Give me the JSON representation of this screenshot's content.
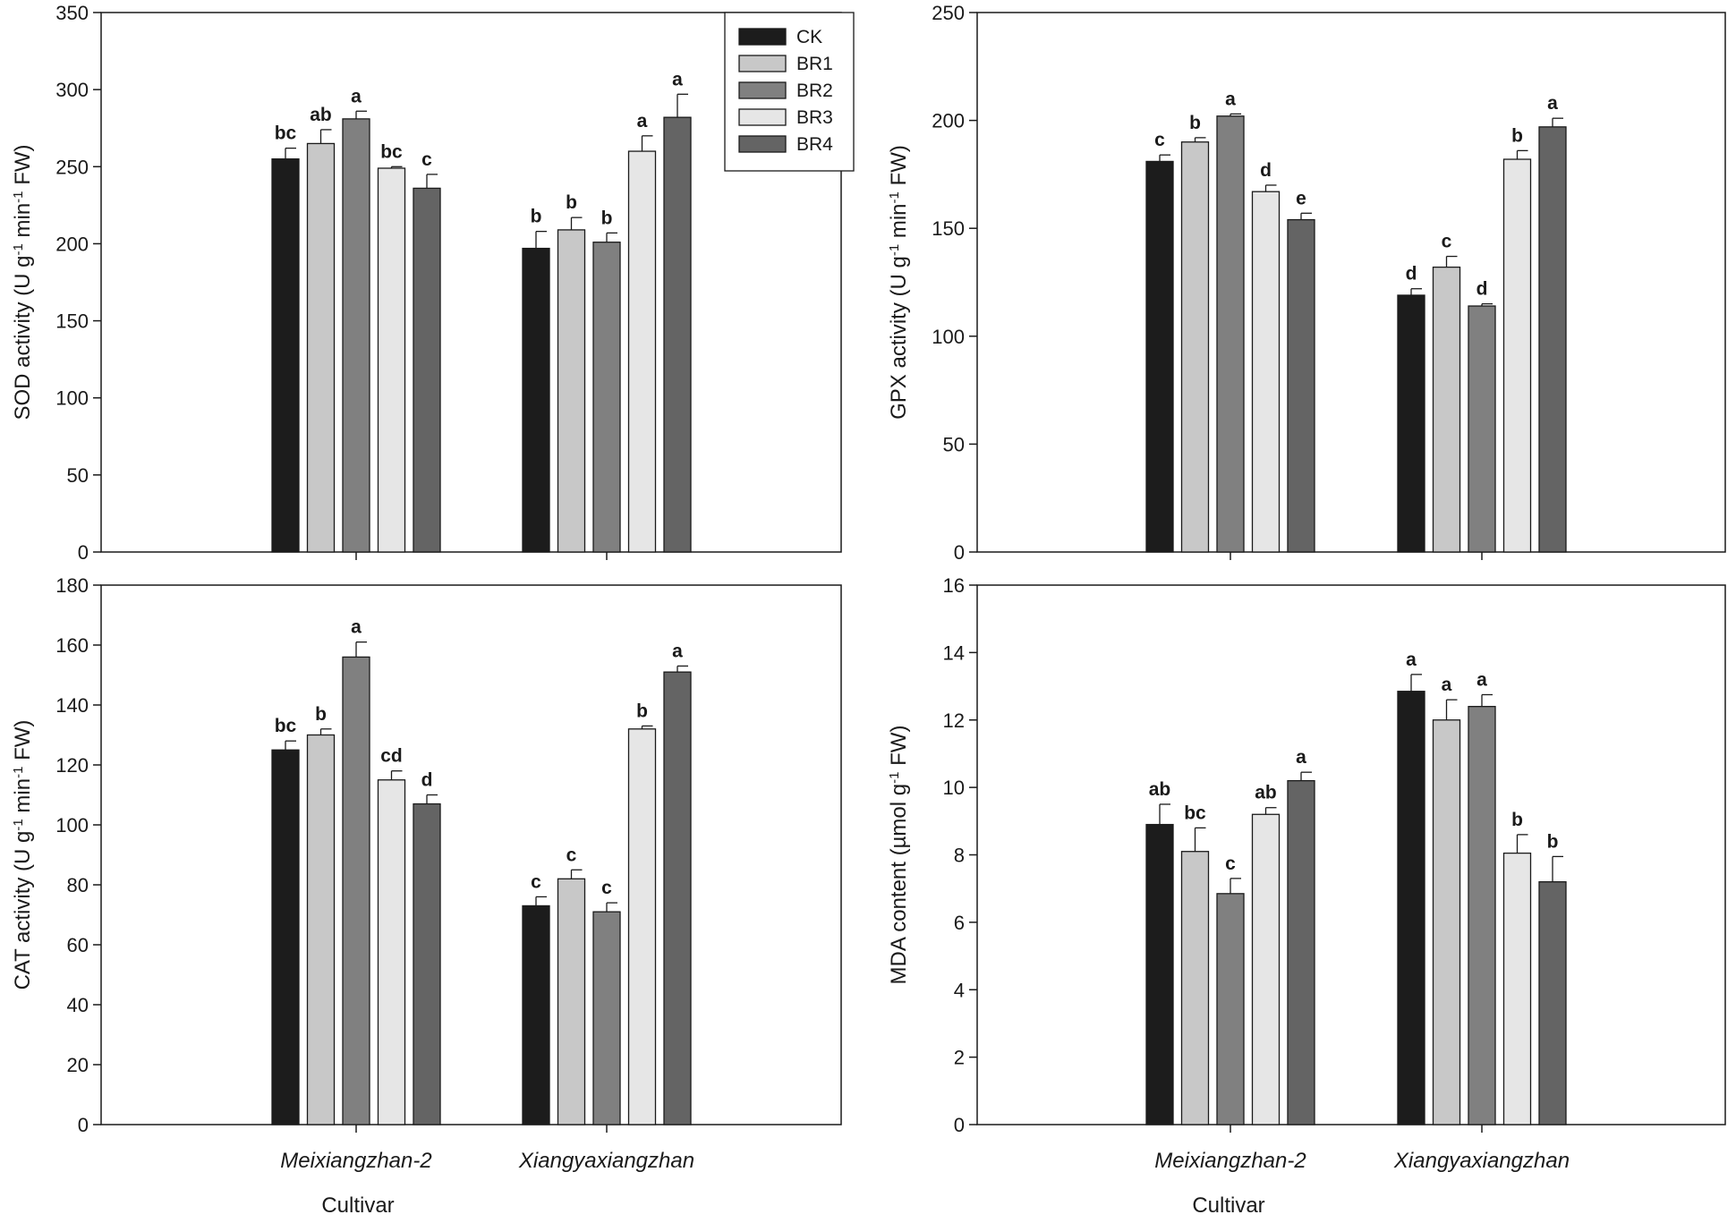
{
  "figure": {
    "xlabel": "Cultivar"
  },
  "series_colors": {
    "CK": "#1c1c1c",
    "BR1": "#c8c8c8",
    "BR2": "#808080",
    "BR3": "#e6e6e6",
    "BR4": "#646464"
  },
  "legend": [
    "CK",
    "BR1",
    "BR2",
    "BR3",
    "BR4"
  ],
  "chart_data": [
    {
      "id": "sod",
      "type": "bar",
      "ylabel": {
        "main": "SOD activity (U g",
        "sup1": "-1",
        "mid": " min",
        "sup2": "-1",
        "end": " FW)"
      },
      "ylim": [
        0,
        350
      ],
      "yticks": [
        0,
        50,
        100,
        150,
        200,
        250,
        300,
        350
      ],
      "categories": [
        "Meixiangzhan-2",
        "Xiangyaxiangzhan"
      ],
      "legend_shown": true,
      "series": [
        {
          "name": "CK",
          "values": [
            255,
            197
          ],
          "errors": [
            7,
            11
          ],
          "labels": [
            "bc",
            "b"
          ]
        },
        {
          "name": "BR1",
          "values": [
            265,
            209
          ],
          "errors": [
            9,
            8
          ],
          "labels": [
            "ab",
            "b"
          ]
        },
        {
          "name": "BR2",
          "values": [
            281,
            201
          ],
          "errors": [
            5,
            6
          ],
          "labels": [
            "a",
            "b"
          ]
        },
        {
          "name": "BR3",
          "values": [
            249,
            260
          ],
          "errors": [
            1,
            10
          ],
          "labels": [
            "bc",
            "a"
          ]
        },
        {
          "name": "BR4",
          "values": [
            236,
            282
          ],
          "errors": [
            9,
            15
          ],
          "labels": [
            "c",
            "a"
          ]
        }
      ]
    },
    {
      "id": "gpx",
      "type": "bar",
      "ylabel": {
        "main": "GPX activity (U g",
        "sup1": "-1",
        "mid": " min",
        "sup2": "-1",
        "end": " FW)"
      },
      "ylim": [
        0,
        250
      ],
      "yticks": [
        0,
        50,
        100,
        150,
        200,
        250
      ],
      "categories": [
        "Meixiangzhan-2",
        "Xiangyaxiangzhan"
      ],
      "legend_shown": false,
      "series": [
        {
          "name": "CK",
          "values": [
            181,
            119
          ],
          "errors": [
            3,
            3
          ],
          "labels": [
            "c",
            "d"
          ]
        },
        {
          "name": "BR1",
          "values": [
            190,
            132
          ],
          "errors": [
            2,
            5
          ],
          "labels": [
            "b",
            "c"
          ]
        },
        {
          "name": "BR2",
          "values": [
            202,
            114
          ],
          "errors": [
            1,
            1
          ],
          "labels": [
            "a",
            "d"
          ]
        },
        {
          "name": "BR3",
          "values": [
            167,
            182
          ],
          "errors": [
            3,
            4
          ],
          "labels": [
            "d",
            "b"
          ]
        },
        {
          "name": "BR4",
          "values": [
            154,
            197
          ],
          "errors": [
            3,
            4
          ],
          "labels": [
            "e",
            "a"
          ]
        }
      ]
    },
    {
      "id": "cat",
      "type": "bar",
      "ylabel": {
        "main": "CAT activity (U g",
        "sup1": "-1",
        "mid": " min",
        "sup2": "-1",
        "end": " FW)"
      },
      "ylim": [
        0,
        180
      ],
      "yticks": [
        0,
        20,
        40,
        60,
        80,
        100,
        120,
        140,
        160,
        180
      ],
      "categories": [
        "Meixiangzhan-2",
        "Xiangyaxiangzhan"
      ],
      "legend_shown": false,
      "series": [
        {
          "name": "CK",
          "values": [
            125,
            73
          ],
          "errors": [
            3,
            3
          ],
          "labels": [
            "bc",
            "c"
          ]
        },
        {
          "name": "BR1",
          "values": [
            130,
            82
          ],
          "errors": [
            2,
            3
          ],
          "labels": [
            "b",
            "c"
          ]
        },
        {
          "name": "BR2",
          "values": [
            156,
            71
          ],
          "errors": [
            5,
            3
          ],
          "labels": [
            "a",
            "c"
          ]
        },
        {
          "name": "BR3",
          "values": [
            115,
            132
          ],
          "errors": [
            3,
            1
          ],
          "labels": [
            "cd",
            "b"
          ]
        },
        {
          "name": "BR4",
          "values": [
            107,
            151
          ],
          "errors": [
            3,
            2
          ],
          "labels": [
            "d",
            "a"
          ]
        }
      ]
    },
    {
      "id": "mda",
      "type": "bar",
      "ylabel": {
        "main": "MDA content (µmol g",
        "sup1": "-1",
        "mid": "",
        "sup2": "",
        "end": " FW)"
      },
      "ylim": [
        0,
        16
      ],
      "yticks": [
        0,
        2,
        4,
        6,
        8,
        10,
        12,
        14,
        16
      ],
      "categories": [
        "Meixiangzhan-2",
        "Xiangyaxiangzhan"
      ],
      "legend_shown": false,
      "series": [
        {
          "name": "CK",
          "values": [
            8.9,
            12.85
          ],
          "errors": [
            0.6,
            0.5
          ],
          "labels": [
            "ab",
            "a"
          ]
        },
        {
          "name": "BR1",
          "values": [
            8.1,
            12.0
          ],
          "errors": [
            0.7,
            0.6
          ],
          "labels": [
            "bc",
            "a"
          ]
        },
        {
          "name": "BR2",
          "values": [
            6.85,
            12.4
          ],
          "errors": [
            0.45,
            0.35
          ],
          "labels": [
            "c",
            "a"
          ]
        },
        {
          "name": "BR3",
          "values": [
            9.2,
            8.05
          ],
          "errors": [
            0.2,
            0.55
          ],
          "labels": [
            "ab",
            "b"
          ]
        },
        {
          "name": "BR4",
          "values": [
            10.2,
            7.2
          ],
          "errors": [
            0.25,
            0.75
          ],
          "labels": [
            "a",
            "b"
          ]
        }
      ]
    }
  ]
}
